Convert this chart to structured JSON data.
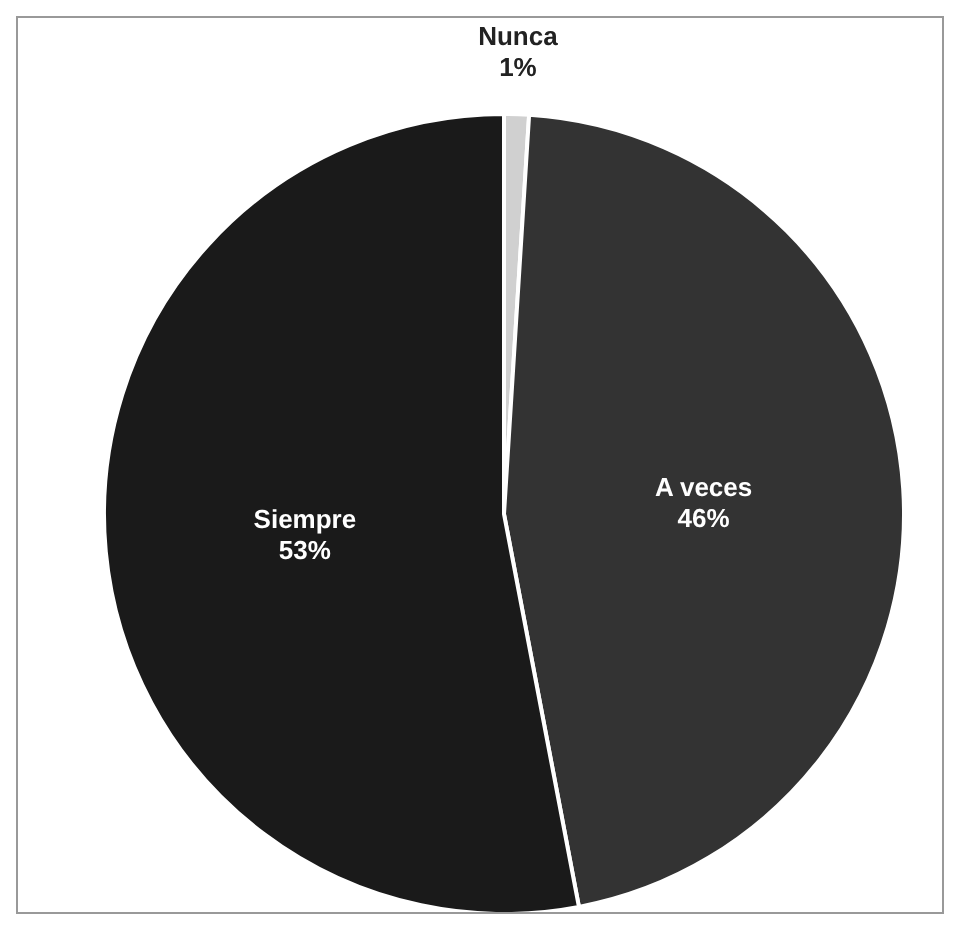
{
  "chart_data": {
    "type": "pie",
    "categories": [
      "Nunca",
      "A veces",
      "Siempre"
    ],
    "values": [
      1,
      46,
      53
    ],
    "colors": [
      "#d0d0d0",
      "#333333",
      "#1a1a1a"
    ],
    "value_labels": [
      "1%",
      "46%",
      "53%"
    ]
  }
}
